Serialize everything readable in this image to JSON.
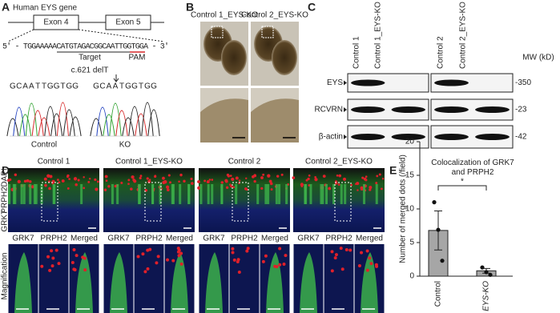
{
  "panel_labels": [
    "A",
    "B",
    "C",
    "D",
    "E"
  ],
  "panel_a": {
    "gene_title": "Human EYS gene",
    "exons": [
      "Exon 4",
      "Exon 5"
    ],
    "sequence": "5' - TGGAAAAACATGTAGACGGCAATTGGTGGA - 3'",
    "target": "Target",
    "pam": "PAM",
    "mutation": "c.621 delT",
    "control_bases": "GCAATTGGTGG",
    "ko_bases": "GCAATGGTGG",
    "traces": [
      "Control",
      "KO"
    ]
  },
  "panel_b": {
    "columns": [
      "Control 1_EYS-KO",
      "Control 2_EYS-KO"
    ]
  },
  "panel_c": {
    "lanes": [
      "Control 1",
      "Control 1_EYS-KO",
      "Control 2",
      "Control 2_EYS-KO"
    ],
    "mw_title": "MW (kD)",
    "rows": [
      "EYS",
      "RCVRN",
      "β-actin"
    ],
    "mw": [
      "-350",
      "-23",
      "-42"
    ]
  },
  "panel_d": {
    "columns": [
      "Control 1",
      "Control 1_EYS-KO",
      "Control 2",
      "Control 2_EYS-KO"
    ],
    "side_label": [
      "GRK7",
      "PRPH2",
      "DAPI"
    ],
    "magnification": "Magnification",
    "channels": [
      "GRK7",
      "PRPH2",
      "Merged"
    ]
  },
  "chart_data": {
    "type": "bar",
    "title": "Colocalization of GRK7 and PRPH2",
    "y_label": "Number of merged dots (/field)",
    "categories": [
      "Control",
      "EYS-KO"
    ],
    "values": [
      6.8,
      0.8
    ],
    "errors": [
      2.9,
      0.35
    ],
    "points": [
      [
        11,
        6.9,
        2.3
      ],
      [
        1.3,
        0.6,
        0.2
      ]
    ],
    "color": "#a6a6a6",
    "ylim": [
      0,
      20
    ],
    "yticks": [
      0,
      5,
      10,
      15,
      20
    ],
    "annotation": "*"
  }
}
